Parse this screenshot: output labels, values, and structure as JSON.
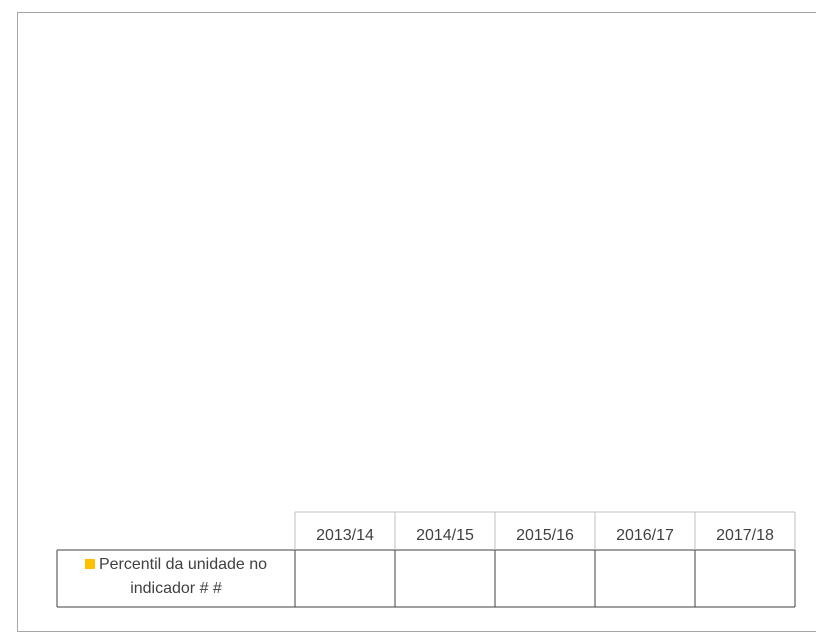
{
  "chart_data": {
    "type": "bar",
    "categories": [
      "2013/14",
      "2014/15",
      "2015/16",
      "2016/17",
      "2017/18"
    ],
    "series": [
      {
        "name": "Percentil da unidade no indicador # #",
        "color": "#ffc000",
        "values": [
          null,
          null,
          null,
          null,
          null
        ]
      }
    ]
  }
}
